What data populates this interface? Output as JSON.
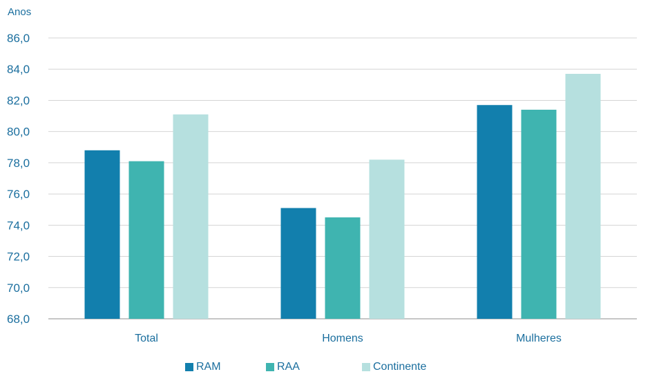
{
  "chart_data": {
    "type": "bar",
    "ylabel": "Anos",
    "categories": [
      "Total",
      "Homens",
      "Mulheres"
    ],
    "series": [
      {
        "name": "RAM",
        "color": "#127fad",
        "values": [
          78.8,
          75.1,
          81.7
        ]
      },
      {
        "name": "RAA",
        "color": "#3fb4b0",
        "values": [
          78.1,
          74.5,
          81.4
        ]
      },
      {
        "name": "Continente",
        "color": "#b6e0df",
        "values": [
          81.1,
          78.2,
          83.7
        ]
      }
    ],
    "ylim": [
      68,
      86
    ],
    "yticks": [
      "68,0",
      "70,0",
      "72,0",
      "74,0",
      "76,0",
      "78,0",
      "80,0",
      "82,0",
      "84,0",
      "86,0"
    ],
    "grid": true,
    "legend_position": "bottom"
  }
}
